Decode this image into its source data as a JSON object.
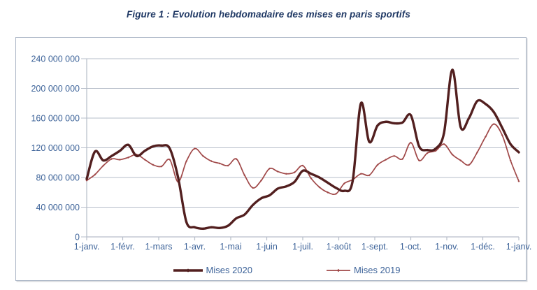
{
  "page": {
    "background": "#ffffff"
  },
  "chart_data": {
    "type": "line",
    "title": "Figure 1 : Evolution hebdomadaire des mises en paris sportifs",
    "title_color": "#1f3864",
    "axis_text_color": "#3d6399",
    "grid_color": "#b6bdc9",
    "grid": true,
    "legend_position": "bottom-center",
    "y_max": 240000000,
    "y_tick_labels": [
      "0",
      "40 000 000",
      "80 000 000",
      "120 000 000",
      "160 000 000",
      "200 000 000",
      "240 000 000"
    ],
    "x_tick_labels": [
      "1-janv.",
      "1-févr.",
      "1-mars",
      "1-avr.",
      "1-mai",
      "1-juin",
      "1-juil.",
      "1-août",
      "1-sept.",
      "1-oct.",
      "1-nov.",
      "1-déc.",
      "1-janv."
    ],
    "points_per_series": 53,
    "series": [
      {
        "name": "Mises 2020",
        "color": "#521f1f",
        "line_width": 3.4,
        "values": [
          78000000,
          115000000,
          103000000,
          109000000,
          116000000,
          124000000,
          109000000,
          116000000,
          122000000,
          123000000,
          119000000,
          80000000,
          20000000,
          13000000,
          11000000,
          13000000,
          12000000,
          15000000,
          25000000,
          30000000,
          43000000,
          52000000,
          56000000,
          65000000,
          68000000,
          74000000,
          89000000,
          85000000,
          80000000,
          73000000,
          66000000,
          62000000,
          75000000,
          180000000,
          128000000,
          150000000,
          155000000,
          153000000,
          154000000,
          164000000,
          122000000,
          117000000,
          119000000,
          140000000,
          225000000,
          148000000,
          160000000,
          183000000,
          179000000,
          168000000,
          147000000,
          125000000,
          114000000
        ]
      },
      {
        "name": "Mises 2019",
        "color": "#a04848",
        "line_width": 1.7,
        "values": [
          76000000,
          84000000,
          96000000,
          105000000,
          104000000,
          107000000,
          111000000,
          104000000,
          97000000,
          95000000,
          104000000,
          74000000,
          102000000,
          119000000,
          109000000,
          102000000,
          99000000,
          96000000,
          105000000,
          83000000,
          66000000,
          76000000,
          92000000,
          88000000,
          85000000,
          87000000,
          96000000,
          79000000,
          67000000,
          60000000,
          58000000,
          72000000,
          77000000,
          85000000,
          83000000,
          97000000,
          104000000,
          109000000,
          105000000,
          127000000,
          103000000,
          113000000,
          116000000,
          125000000,
          111000000,
          103000000,
          97000000,
          114000000,
          135000000,
          152000000,
          137000000,
          103000000,
          75000000
        ]
      }
    ]
  }
}
